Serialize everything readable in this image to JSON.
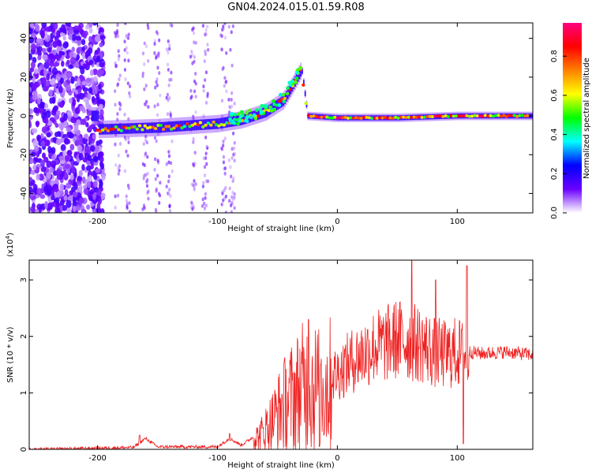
{
  "title": "GN04.2024.015.01.59.R08",
  "chart_data": [
    {
      "type": "heatmap",
      "xlabel": "Height of straight line (km)",
      "ylabel": "Frequency (Hz)",
      "xlim": [
        -257,
        163
      ],
      "ylim": [
        -50,
        48
      ],
      "x_ticks": [
        -200,
        -100,
        0,
        100
      ],
      "y_ticks": [
        -40,
        -20,
        0,
        20,
        40
      ],
      "colorbar": {
        "label": "Normalized spectral amplitude",
        "range": [
          0,
          0.97
        ],
        "ticks": [
          "0.0",
          "0.2",
          "0.4",
          "0.6",
          "0.8"
        ],
        "tick_values": [
          0.0,
          0.2,
          0.4,
          0.6,
          0.8
        ],
        "colors": [
          "#ffffff",
          "#6a00ff",
          "#0000ff",
          "#00ffff",
          "#00ff00",
          "#ffff00",
          "#ff8000",
          "#ff0000",
          "#ff0080"
        ]
      },
      "ridge": [
        {
          "x": -200,
          "f": -7
        },
        {
          "x": -150,
          "f": -6
        },
        {
          "x": -100,
          "f": -4
        },
        {
          "x": -80,
          "f": -2
        },
        {
          "x": -60,
          "f": 2
        },
        {
          "x": -45,
          "f": 8
        },
        {
          "x": -30,
          "f": 24
        },
        {
          "x": -25,
          "f": 0
        },
        {
          "x": 0,
          "f": -1
        },
        {
          "x": 50,
          "f": -1
        },
        {
          "x": 100,
          "f": 0
        },
        {
          "x": 163,
          "f": 0
        }
      ]
    },
    {
      "type": "line",
      "xlabel": "Height of straight line (km)",
      "ylabel": "SNR (10 * v/v)",
      "ylabel_multiplier": "(x10",
      "ylabel_multiplier_exp": "4",
      "ylabel_multiplier_close": ")",
      "xlim": [
        -257,
        163
      ],
      "ylim": [
        0,
        3.35
      ],
      "x_ticks": [
        -200,
        -100,
        0,
        100
      ],
      "y_ticks": [
        0,
        1,
        2,
        3
      ],
      "line_color": "#ee2222",
      "envelope": [
        {
          "x": -257,
          "y": 0.0
        },
        {
          "x": -170,
          "y": 0.04
        },
        {
          "x": -160,
          "y": 0.2
        },
        {
          "x": -150,
          "y": 0.05
        },
        {
          "x": -100,
          "y": 0.05
        },
        {
          "x": -90,
          "y": 0.2
        },
        {
          "x": -80,
          "y": 0.08
        },
        {
          "x": -65,
          "y": 0.3
        },
        {
          "x": -55,
          "y": 0.6
        },
        {
          "x": -45,
          "y": 0.95
        },
        {
          "x": -35,
          "y": 1.2
        },
        {
          "x": -25,
          "y": 1.4
        },
        {
          "x": -15,
          "y": 1.3
        },
        {
          "x": 0,
          "y": 1.45
        },
        {
          "x": 10,
          "y": 1.65
        },
        {
          "x": 20,
          "y": 1.8
        },
        {
          "x": 30,
          "y": 1.95
        },
        {
          "x": 40,
          "y": 2.0
        },
        {
          "x": 50,
          "y": 2.1
        },
        {
          "x": 60,
          "y": 2.05
        },
        {
          "x": 70,
          "y": 2.0
        },
        {
          "x": 80,
          "y": 1.85
        },
        {
          "x": 90,
          "y": 1.8
        },
        {
          "x": 100,
          "y": 1.85
        },
        {
          "x": 110,
          "y": 1.75
        },
        {
          "x": 120,
          "y": 1.72
        },
        {
          "x": 140,
          "y": 1.75
        },
        {
          "x": 163,
          "y": 1.7
        }
      ],
      "peaks": [
        {
          "x": -165,
          "y": 0.25
        },
        {
          "x": -90,
          "y": 0.28
        },
        {
          "x": -24,
          "y": 2.3
        },
        {
          "x": -14,
          "y": 1.5
        },
        {
          "x": 62,
          "y": 3.35
        },
        {
          "x": 82,
          "y": 3.0
        },
        {
          "x": 108,
          "y": 3.25
        }
      ],
      "dips": [
        {
          "x": -15,
          "y": 0.05
        },
        {
          "x": 105,
          "y": 0.1
        }
      ]
    }
  ]
}
